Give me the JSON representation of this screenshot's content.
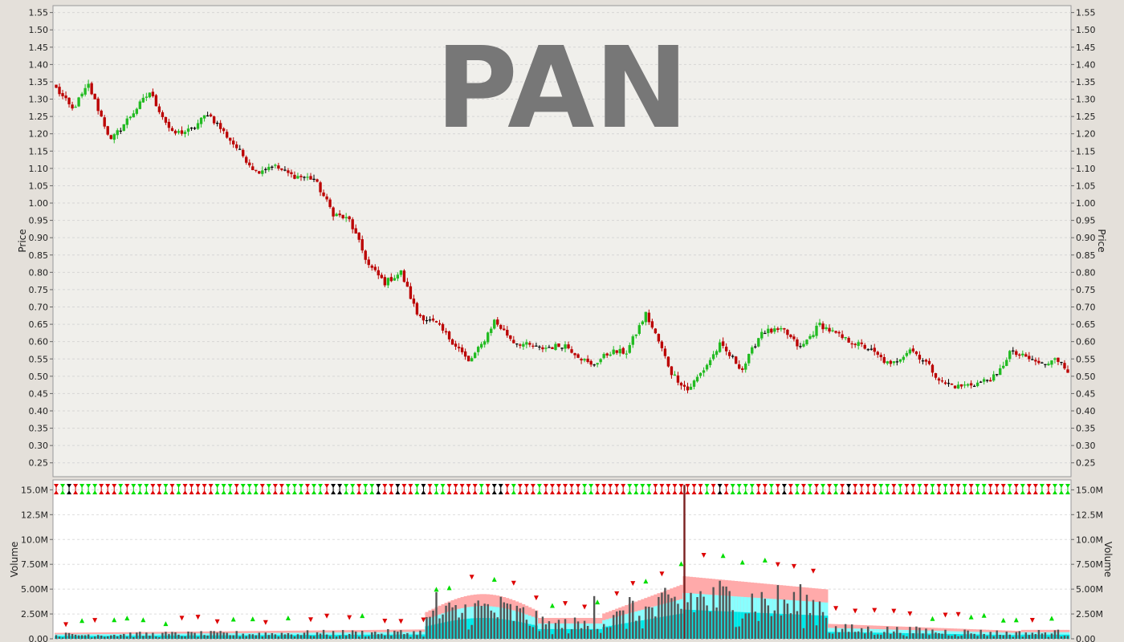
{
  "chart_data": [
    {
      "type": "candlestick",
      "watermark": "PAN",
      "ylabel": "Price",
      "ylim": [
        0.21,
        1.57
      ],
      "yticks": [
        "0.25",
        "0.30",
        "0.35",
        "0.40",
        "0.45",
        "0.50",
        "0.55",
        "0.60",
        "0.65",
        "0.70",
        "0.75",
        "0.80",
        "0.85",
        "0.90",
        "0.95",
        "1.00",
        "1.05",
        "1.10",
        "1.15",
        "1.20",
        "1.25",
        "1.30",
        "1.35",
        "1.40",
        "1.45",
        "1.50",
        "1.55"
      ],
      "grid": true,
      "colors": {
        "up": "#22bb22",
        "down": "#bb0000",
        "neutral": "#000000",
        "background": "#f0efeb",
        "grid": "#d6d6d6"
      },
      "anchors": [
        {
          "bar": 0,
          "price": 1.33
        },
        {
          "bar": 5,
          "price": 1.27
        },
        {
          "bar": 10,
          "price": 1.34
        },
        {
          "bar": 17,
          "price": 1.18
        },
        {
          "bar": 22,
          "price": 1.24
        },
        {
          "bar": 29,
          "price": 1.32
        },
        {
          "bar": 36,
          "price": 1.2
        },
        {
          "bar": 42,
          "price": 1.21
        },
        {
          "bar": 47,
          "price": 1.26
        },
        {
          "bar": 56,
          "price": 1.16
        },
        {
          "bar": 62,
          "price": 1.09
        },
        {
          "bar": 67,
          "price": 1.11
        },
        {
          "bar": 73,
          "price": 1.08
        },
        {
          "bar": 80,
          "price": 1.07
        },
        {
          "bar": 86,
          "price": 0.97
        },
        {
          "bar": 91,
          "price": 0.95
        },
        {
          "bar": 97,
          "price": 0.82
        },
        {
          "bar": 102,
          "price": 0.77
        },
        {
          "bar": 107,
          "price": 0.8
        },
        {
          "bar": 112,
          "price": 0.68
        },
        {
          "bar": 118,
          "price": 0.65
        },
        {
          "bar": 125,
          "price": 0.58
        },
        {
          "bar": 128,
          "price": 0.54
        },
        {
          "bar": 132,
          "price": 0.59
        },
        {
          "bar": 136,
          "price": 0.66
        },
        {
          "bar": 142,
          "price": 0.6
        },
        {
          "bar": 150,
          "price": 0.58
        },
        {
          "bar": 158,
          "price": 0.59
        },
        {
          "bar": 166,
          "price": 0.53
        },
        {
          "bar": 172,
          "price": 0.57
        },
        {
          "bar": 177,
          "price": 0.57
        },
        {
          "bar": 183,
          "price": 0.68
        },
        {
          "bar": 187,
          "price": 0.6
        },
        {
          "bar": 191,
          "price": 0.51
        },
        {
          "bar": 196,
          "price": 0.46
        },
        {
          "bar": 201,
          "price": 0.52
        },
        {
          "bar": 206,
          "price": 0.59
        },
        {
          "bar": 213,
          "price": 0.52
        },
        {
          "bar": 219,
          "price": 0.63
        },
        {
          "bar": 226,
          "price": 0.63
        },
        {
          "bar": 231,
          "price": 0.58
        },
        {
          "bar": 237,
          "price": 0.65
        },
        {
          "bar": 244,
          "price": 0.61
        },
        {
          "bar": 252,
          "price": 0.58
        },
        {
          "bar": 259,
          "price": 0.53
        },
        {
          "bar": 265,
          "price": 0.58
        },
        {
          "bar": 270,
          "price": 0.54
        },
        {
          "bar": 275,
          "price": 0.48
        },
        {
          "bar": 280,
          "price": 0.47
        },
        {
          "bar": 286,
          "price": 0.48
        },
        {
          "bar": 292,
          "price": 0.5
        },
        {
          "bar": 296,
          "price": 0.57
        },
        {
          "bar": 302,
          "price": 0.55
        },
        {
          "bar": 307,
          "price": 0.53
        },
        {
          "bar": 310,
          "price": 0.56
        },
        {
          "bar": 314,
          "price": 0.51
        }
      ]
    },
    {
      "type": "bar",
      "ylabel": "Volume",
      "ylim": [
        0,
        16000000
      ],
      "yticks": [
        "0.00",
        "2.50M",
        "5.00M",
        "7.50M",
        "10.0M",
        "12.5M",
        "15.0M"
      ],
      "colors": {
        "bar": "#555555",
        "spike": "#7a2020",
        "band_outer": "#ffaaaa",
        "band_mid": "#88ffff",
        "band_inner": "#00e8e8",
        "up_marker": "#00dd00",
        "down_marker": "#dd0000"
      },
      "spikes": [
        {
          "bar": 195,
          "volume": 15500000
        },
        {
          "bar": 204,
          "volume": 5200000
        },
        {
          "bar": 118,
          "volume": 4700000
        },
        {
          "bar": 167,
          "volume": 4300000
        },
        {
          "bar": 178,
          "volume": 4200000
        }
      ]
    }
  ]
}
